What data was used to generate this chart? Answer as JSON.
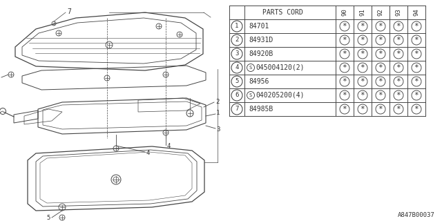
{
  "bg_color": "#ffffff",
  "table": {
    "rows": [
      [
        "1",
        "84701",
        "*",
        "*",
        "*",
        "*",
        "*"
      ],
      [
        "2",
        "84931D",
        "*",
        "*",
        "*",
        "*",
        "*"
      ],
      [
        "3",
        "84920B",
        "*",
        "*",
        "*",
        "*",
        "*"
      ],
      [
        "4",
        "S045004120(2)",
        "*",
        "*",
        "*",
        "*",
        "*"
      ],
      [
        "5",
        "84956",
        "*",
        "*",
        "*",
        "*",
        "*"
      ],
      [
        "6",
        "S040205200(4)",
        "*",
        "*",
        "*",
        "*",
        "*"
      ],
      [
        "7",
        "84985B",
        "*",
        "*",
        "*",
        "*",
        "*"
      ]
    ]
  },
  "footer": "A847B00037",
  "lc": "#444444",
  "tc": "#333333"
}
